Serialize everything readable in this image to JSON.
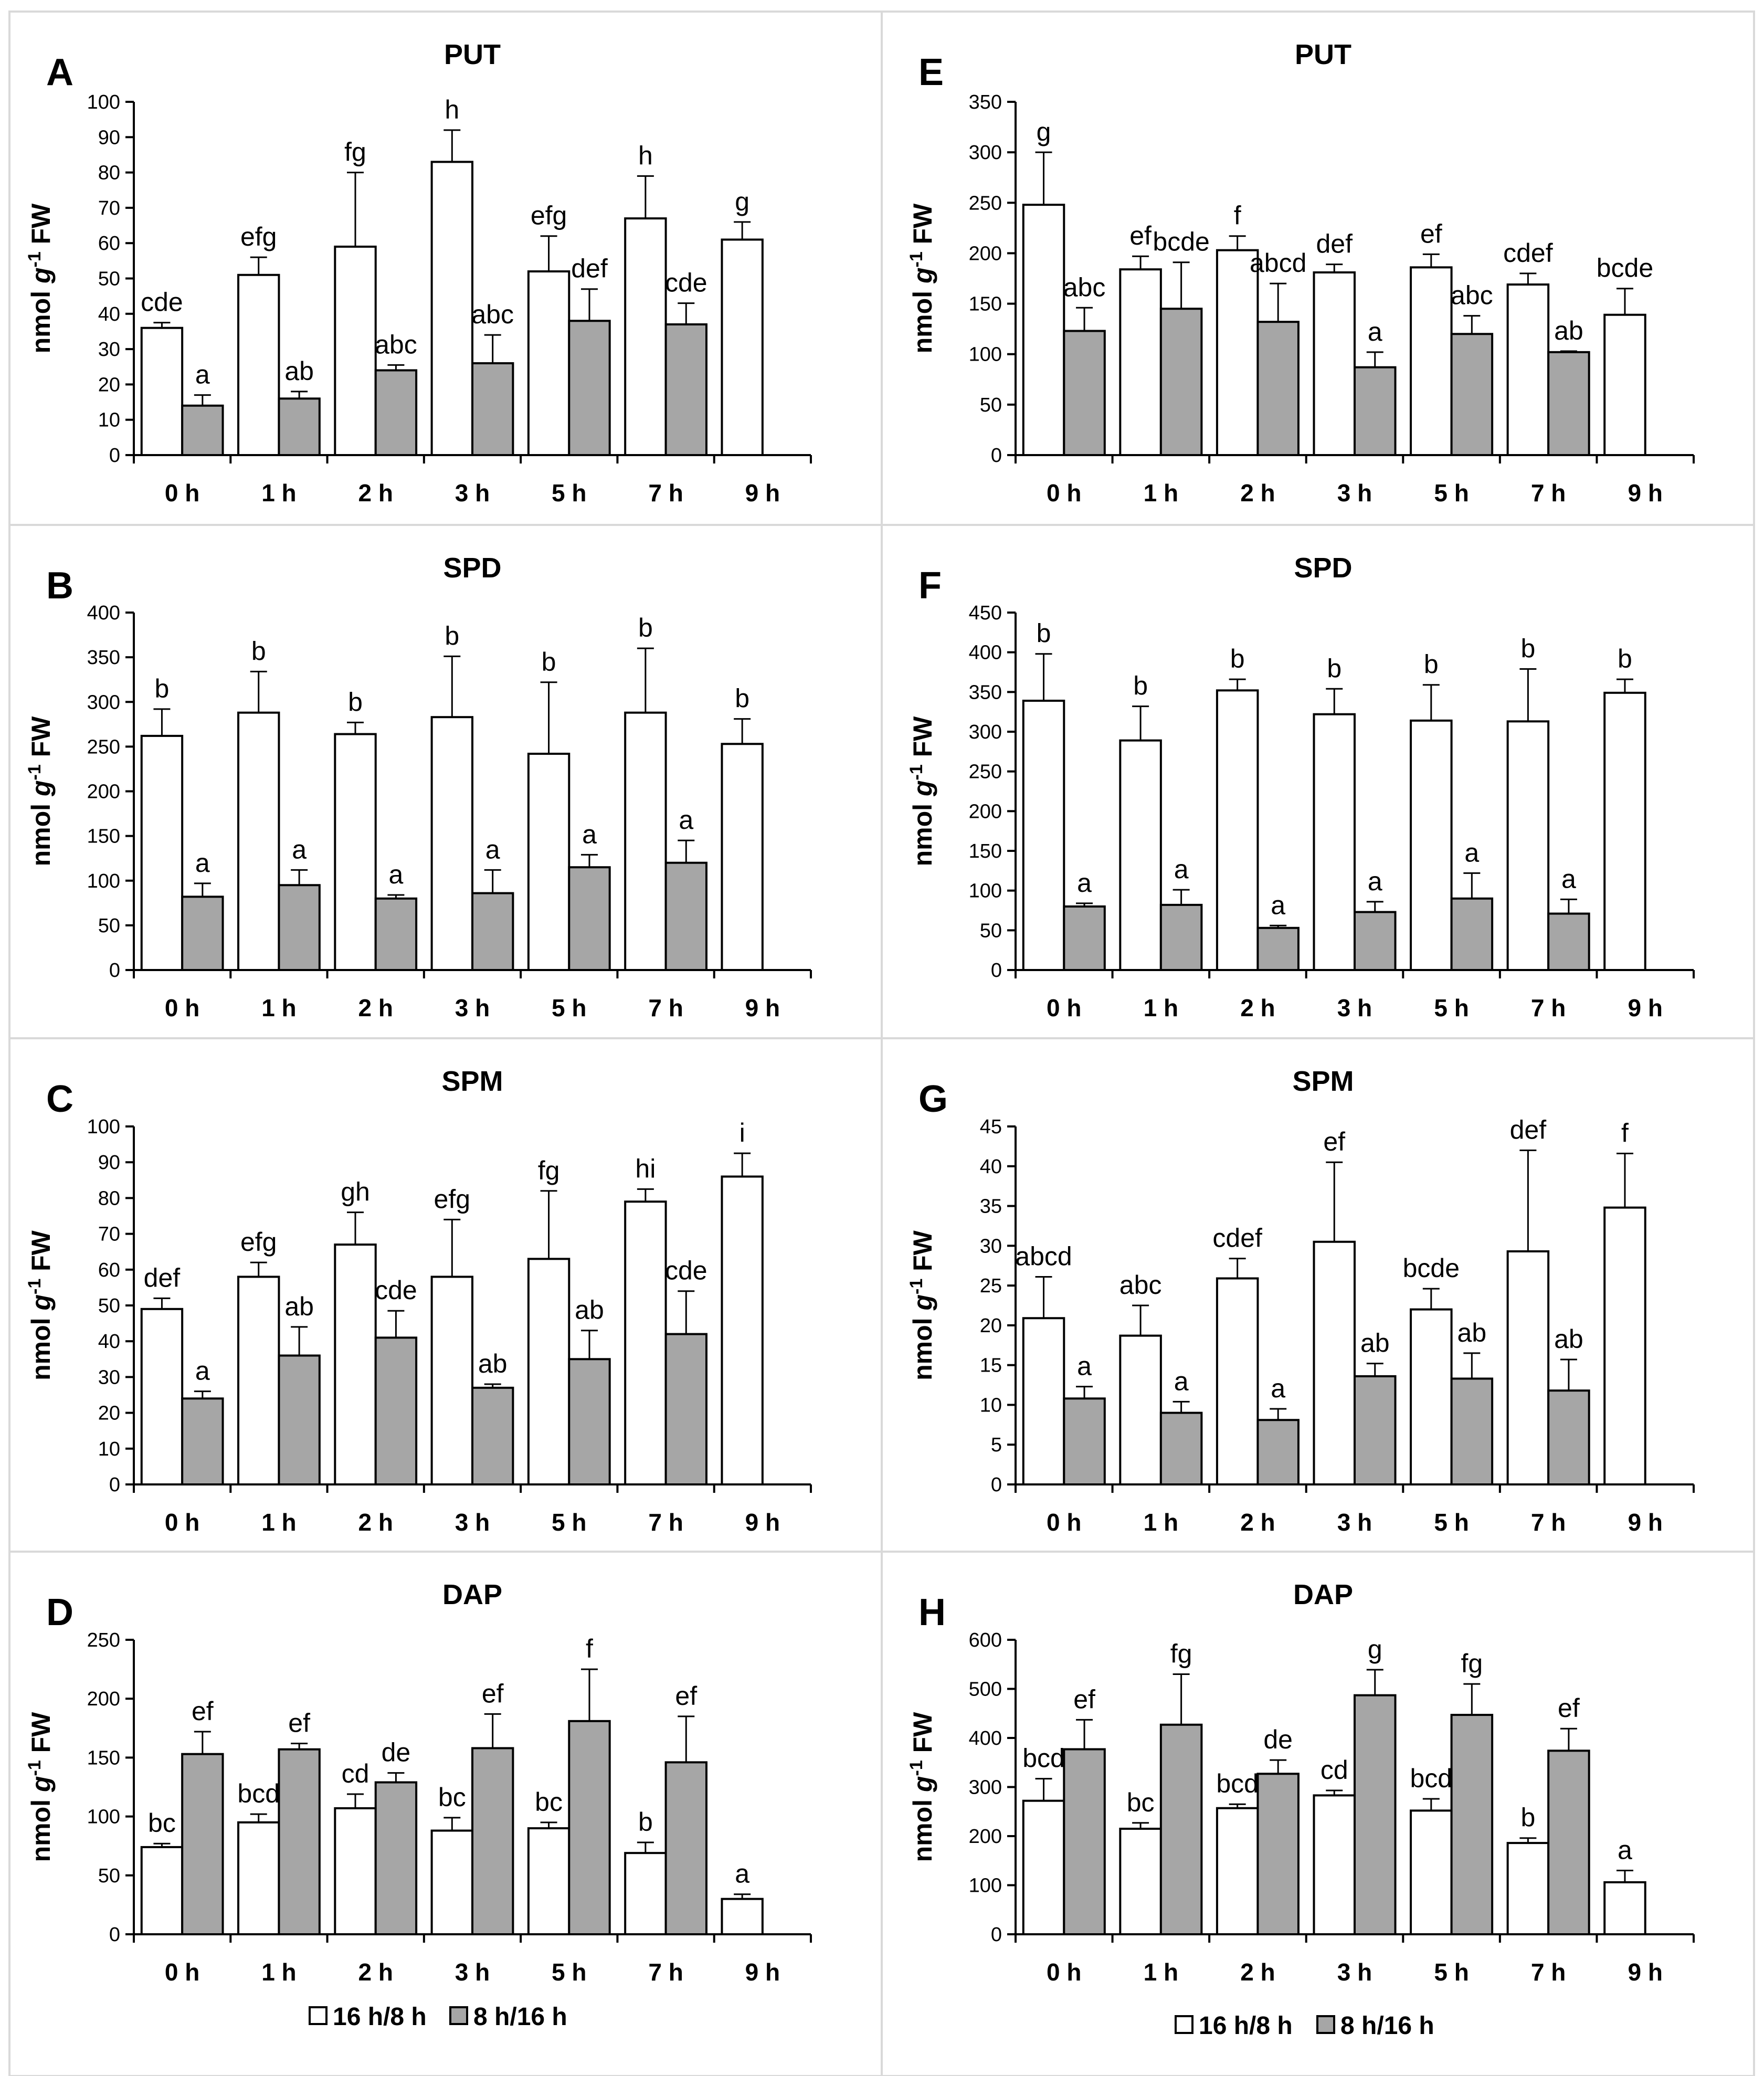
{
  "figure": {
    "categories": [
      "0 h",
      "1 h",
      "2 h",
      "3 h",
      "5 h",
      "7 h",
      "9 h"
    ],
    "legend": [
      {
        "label": "16 h/8 h",
        "color": "#ffffff"
      },
      {
        "label": "8 h/16 h",
        "color": "#a6a6a6"
      }
    ],
    "ylabel_prefix": "nmol ",
    "ylabel_g": "g",
    "ylabel_exp": "-1",
    "ylabel_suffix": " FW"
  },
  "chart_data": [
    {
      "type": "bar",
      "panel": "A",
      "title": "PUT",
      "ylim": [
        0,
        100
      ],
      "yticks": [
        0,
        10,
        20,
        30,
        40,
        50,
        60,
        70,
        80,
        90,
        100
      ],
      "categories": [
        "0 h",
        "1 h",
        "2 h",
        "3 h",
        "5 h",
        "7 h",
        "9 h"
      ],
      "series": [
        {
          "name": "16 h/8 h",
          "values": [
            36,
            51,
            59,
            83,
            52,
            67,
            61
          ],
          "errors": [
            1.5,
            5,
            21,
            9,
            10,
            12,
            5
          ],
          "labels": [
            "cde",
            "efg",
            "fg",
            "h",
            "efg",
            "h",
            "g"
          ]
        },
        {
          "name": "8 h/16 h",
          "values": [
            14,
            16,
            24,
            26,
            38,
            37,
            null
          ],
          "errors": [
            3,
            2,
            1.5,
            8,
            9,
            6,
            null
          ],
          "labels": [
            "a",
            "ab",
            "abc",
            "abc",
            "def",
            "cde",
            null
          ]
        }
      ]
    },
    {
      "type": "bar",
      "panel": "B",
      "title": "SPD",
      "ylim": [
        0,
        400
      ],
      "yticks": [
        0,
        50,
        100,
        150,
        200,
        250,
        300,
        350,
        400
      ],
      "categories": [
        "0 h",
        "1 h",
        "2 h",
        "3 h",
        "5 h",
        "7 h",
        "9 h"
      ],
      "series": [
        {
          "name": "16 h/8 h",
          "values": [
            262,
            288,
            264,
            283,
            242,
            288,
            253
          ],
          "errors": [
            30,
            46,
            13,
            68,
            80,
            72,
            28
          ],
          "labels": [
            "b",
            "b",
            "b",
            "b",
            "b",
            "b",
            "b"
          ]
        },
        {
          "name": "8 h/16 h",
          "values": [
            82,
            95,
            80,
            86,
            115,
            120,
            null
          ],
          "errors": [
            15,
            17,
            4,
            26,
            14,
            25,
            null
          ],
          "labels": [
            "a",
            "a",
            "a",
            "a",
            "a",
            "a",
            null
          ]
        }
      ]
    },
    {
      "type": "bar",
      "panel": "C",
      "title": "SPM",
      "ylim": [
        0,
        100
      ],
      "yticks": [
        0,
        10,
        20,
        30,
        40,
        50,
        60,
        70,
        80,
        90,
        100
      ],
      "categories": [
        "0 h",
        "1 h",
        "2 h",
        "3 h",
        "5 h",
        "7 h",
        "9 h"
      ],
      "series": [
        {
          "name": "16 h/8 h",
          "values": [
            49,
            58,
            67,
            58,
            63,
            79,
            86
          ],
          "errors": [
            3,
            4,
            9,
            16,
            19,
            3.5,
            6.5
          ],
          "labels": [
            "def",
            "efg",
            "gh",
            "efg",
            "fg",
            "hi",
            "i"
          ]
        },
        {
          "name": "8 h/16 h",
          "values": [
            24,
            36,
            41,
            27,
            35,
            42,
            null
          ],
          "errors": [
            2,
            8,
            7.5,
            1,
            8,
            12,
            null
          ],
          "labels": [
            "a",
            "ab",
            "cde",
            "ab",
            "ab",
            "cde",
            null
          ]
        }
      ]
    },
    {
      "type": "bar",
      "panel": "D",
      "title": "DAP",
      "ylim": [
        0,
        250
      ],
      "yticks": [
        0,
        50,
        100,
        150,
        200,
        250
      ],
      "categories": [
        "0 h",
        "1 h",
        "2 h",
        "3 h",
        "5 h",
        "7 h",
        "9 h"
      ],
      "series": [
        {
          "name": "16 h/8 h",
          "values": [
            74,
            95,
            107,
            88,
            90,
            69,
            30
          ],
          "errors": [
            3,
            7,
            12,
            11,
            5,
            9,
            4
          ],
          "labels": [
            "bc",
            "bcd",
            "cd",
            "bc",
            "bc",
            "b",
            "a"
          ]
        },
        {
          "name": "8 h/16 h",
          "values": [
            153,
            157,
            129,
            158,
            181,
            146,
            null
          ],
          "errors": [
            19,
            5,
            8,
            29,
            44,
            39,
            null
          ],
          "labels": [
            "ef",
            "ef",
            "de",
            "ef",
            "f",
            "ef",
            null
          ]
        }
      ]
    },
    {
      "type": "bar",
      "panel": "E",
      "title": "PUT",
      "ylim": [
        0,
        350
      ],
      "yticks": [
        0,
        50,
        100,
        150,
        200,
        250,
        300,
        350
      ],
      "categories": [
        "0 h",
        "1 h",
        "2 h",
        "3 h",
        "5 h",
        "7 h",
        "9 h"
      ],
      "series": [
        {
          "name": "16 h/8 h",
          "values": [
            248,
            184,
            203,
            181,
            186,
            169,
            139
          ],
          "errors": [
            52,
            13,
            14,
            8,
            13,
            11,
            26
          ],
          "labels": [
            "g",
            "ef",
            "f",
            "def",
            "ef",
            "cdef",
            "bcde"
          ]
        },
        {
          "name": "8 h/16 h",
          "values": [
            123,
            145,
            132,
            87,
            120,
            102,
            null
          ],
          "errors": [
            23,
            46,
            38,
            15,
            18,
            1,
            null
          ],
          "labels": [
            "abc",
            "bcde",
            "abcd",
            "a",
            "abc",
            "ab",
            null
          ]
        }
      ]
    },
    {
      "type": "bar",
      "panel": "F",
      "title": "SPD",
      "ylim": [
        0,
        450
      ],
      "yticks": [
        0,
        50,
        100,
        150,
        200,
        250,
        300,
        350,
        400,
        450
      ],
      "categories": [
        "0 h",
        "1 h",
        "2 h",
        "3 h",
        "5 h",
        "7 h",
        "9 h"
      ],
      "series": [
        {
          "name": "16 h/8 h",
          "values": [
            339,
            289,
            352,
            322,
            314,
            313,
            349
          ],
          "errors": [
            59,
            43,
            14,
            32,
            45,
            66,
            17
          ],
          "labels": [
            "b",
            "b",
            "b",
            "b",
            "b",
            "b",
            "b"
          ]
        },
        {
          "name": "8 h/16 h",
          "values": [
            80,
            82,
            53,
            73,
            90,
            71,
            null
          ],
          "errors": [
            4,
            19,
            3,
            13,
            32,
            18,
            null
          ],
          "labels": [
            "a",
            "a",
            "a",
            "a",
            "a",
            "a",
            null
          ]
        }
      ]
    },
    {
      "type": "bar",
      "panel": "G",
      "title": "SPM",
      "ylim": [
        0,
        45
      ],
      "yticks": [
        0,
        5,
        10,
        15,
        20,
        25,
        30,
        35,
        40,
        45
      ],
      "categories": [
        "0 h",
        "1 h",
        "2 h",
        "3 h",
        "5 h",
        "7 h",
        "9 h"
      ],
      "series": [
        {
          "name": "16 h/8 h",
          "values": [
            20.9,
            18.7,
            25.9,
            30.5,
            22.0,
            29.3,
            34.8
          ],
          "errors": [
            5.2,
            3.8,
            2.5,
            10,
            2.6,
            12.7,
            6.8
          ],
          "labels": [
            "abcd",
            "abc",
            "cdef",
            "ef",
            "bcde",
            "def",
            "f"
          ]
        },
        {
          "name": "8 h/16 h",
          "values": [
            10.8,
            9.0,
            8.1,
            13.6,
            13.3,
            11.8,
            null
          ],
          "errors": [
            1.5,
            1.4,
            1.4,
            1.6,
            3.2,
            3.9,
            null
          ],
          "labels": [
            "a",
            "a",
            "a",
            "ab",
            "ab",
            "ab",
            null
          ]
        }
      ]
    },
    {
      "type": "bar",
      "panel": "H",
      "title": "DAP",
      "ylim": [
        0,
        600
      ],
      "yticks": [
        0,
        100,
        200,
        300,
        400,
        500,
        600
      ],
      "categories": [
        "0 h",
        "1 h",
        "2 h",
        "3 h",
        "5 h",
        "7 h",
        "9 h"
      ],
      "series": [
        {
          "name": "16 h/8 h",
          "values": [
            272,
            215,
            257,
            283,
            252,
            186,
            106
          ],
          "errors": [
            45,
            12,
            8,
            10,
            24,
            10,
            24
          ],
          "labels": [
            "bcd",
            "bc",
            "bcd",
            "cd",
            "bcd",
            "b",
            "a"
          ]
        },
        {
          "name": "8 h/16 h",
          "values": [
            377,
            427,
            327,
            487,
            447,
            374,
            null
          ],
          "errors": [
            60,
            103,
            28,
            52,
            63,
            45,
            null
          ],
          "labels": [
            "ef",
            "fg",
            "de",
            "g",
            "fg",
            "ef",
            null
          ]
        }
      ]
    }
  ]
}
